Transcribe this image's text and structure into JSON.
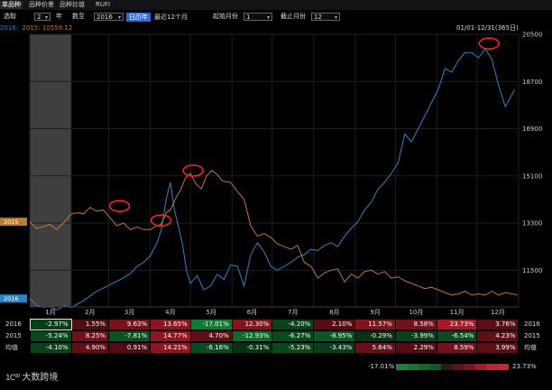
{
  "tabs": [
    {
      "label": "单品种",
      "active": true
    },
    {
      "label": "品种价差",
      "active": false
    },
    {
      "label": "品种比值",
      "active": false
    },
    {
      "label": "RUFI",
      "active": false
    }
  ],
  "toolbar": {
    "select_label": "选取",
    "count_value": "2",
    "year_label": "年",
    "to_label": "数至",
    "year_value": "2016",
    "btn_calendar": "日历年",
    "btn_last12": "最近12个月",
    "start_month_label": "起始月份",
    "start_month_value": "1",
    "end_month_label": "截止月份",
    "end_month_value": "12"
  },
  "legend": {
    "series2016": "2016:",
    "series2015": "2015: 10559.12"
  },
  "date_range": "01/01-12/31(365日)",
  "colors": {
    "s2016": "#2a87c4",
    "s2015": "#c07a2c",
    "highlight": "#ff2020",
    "green_max": "#0f8a36",
    "red_max": "#d1212f"
  },
  "chart_data": {
    "type": "line",
    "yticks": [
      11500,
      13300,
      15100,
      16900,
      18700,
      20500
    ],
    "ylim": [
      10100,
      20500
    ],
    "months": [
      "1月",
      "2月",
      "3月",
      "4月",
      "5月",
      "6月",
      "7月",
      "8月",
      "9月",
      "10月",
      "11月",
      "12月"
    ],
    "series": [
      {
        "name": "2016",
        "badge": "2016",
        "points": [
          [
            0,
            10420
          ],
          [
            5,
            10170
          ],
          [
            10,
            10080
          ],
          [
            15,
            10120
          ],
          [
            20,
            9990
          ],
          [
            26,
            10140
          ],
          [
            31,
            10080
          ],
          [
            36,
            10220
          ],
          [
            40,
            10330
          ],
          [
            45,
            10520
          ],
          [
            50,
            10700
          ],
          [
            55,
            10820
          ],
          [
            60,
            10950
          ],
          [
            65,
            11080
          ],
          [
            70,
            11210
          ],
          [
            75,
            11370
          ],
          [
            80,
            11650
          ],
          [
            85,
            11800
          ],
          [
            90,
            12050
          ],
          [
            95,
            12550
          ],
          [
            98,
            13000
          ],
          [
            102,
            14250
          ],
          [
            105,
            14850
          ],
          [
            108,
            13800
          ],
          [
            111,
            13150
          ],
          [
            114,
            12500
          ],
          [
            117,
            11500
          ],
          [
            120,
            11000
          ],
          [
            125,
            11300
          ],
          [
            130,
            10750
          ],
          [
            135,
            10900
          ],
          [
            140,
            11350
          ],
          [
            145,
            11150
          ],
          [
            150,
            11700
          ],
          [
            155,
            11650
          ],
          [
            160,
            10900
          ],
          [
            165,
            12100
          ],
          [
            170,
            12550
          ],
          [
            175,
            12200
          ],
          [
            180,
            11650
          ],
          [
            185,
            11500
          ],
          [
            190,
            11650
          ],
          [
            195,
            11800
          ],
          [
            200,
            12000
          ],
          [
            205,
            12100
          ],
          [
            210,
            12300
          ],
          [
            215,
            12250
          ],
          [
            220,
            12450
          ],
          [
            225,
            12550
          ],
          [
            230,
            12400
          ],
          [
            235,
            12800
          ],
          [
            240,
            13100
          ],
          [
            245,
            13350
          ],
          [
            250,
            13800
          ],
          [
            255,
            14100
          ],
          [
            260,
            14600
          ],
          [
            265,
            14850
          ],
          [
            270,
            15200
          ],
          [
            275,
            15600
          ],
          [
            280,
            16700
          ],
          [
            285,
            16400
          ],
          [
            290,
            16900
          ],
          [
            295,
            17400
          ],
          [
            300,
            17900
          ],
          [
            305,
            18400
          ],
          [
            310,
            19200
          ],
          [
            315,
            19050
          ],
          [
            320,
            19500
          ],
          [
            325,
            19800
          ],
          [
            330,
            19800
          ],
          [
            335,
            19600
          ],
          [
            340,
            19950
          ],
          [
            345,
            19550
          ],
          [
            350,
            18550
          ],
          [
            355,
            17750
          ],
          [
            358,
            18000
          ],
          [
            362,
            18400
          ]
        ]
      },
      {
        "name": "2015",
        "badge": "2015",
        "points": [
          [
            0,
            13350
          ],
          [
            5,
            13100
          ],
          [
            10,
            13150
          ],
          [
            15,
            13250
          ],
          [
            20,
            13050
          ],
          [
            26,
            13350
          ],
          [
            31,
            13650
          ],
          [
            36,
            13700
          ],
          [
            40,
            13650
          ],
          [
            45,
            13900
          ],
          [
            50,
            13750
          ],
          [
            55,
            13800
          ],
          [
            60,
            13500
          ],
          [
            65,
            13200
          ],
          [
            70,
            13300
          ],
          [
            75,
            13050
          ],
          [
            80,
            13150
          ],
          [
            85,
            13050
          ],
          [
            90,
            13050
          ],
          [
            95,
            13200
          ],
          [
            98,
            13250
          ],
          [
            102,
            13700
          ],
          [
            105,
            13800
          ],
          [
            110,
            14350
          ],
          [
            113,
            14600
          ],
          [
            116,
            15000
          ],
          [
            120,
            15200
          ],
          [
            124,
            14800
          ],
          [
            128,
            14600
          ],
          [
            132,
            15100
          ],
          [
            136,
            15300
          ],
          [
            140,
            15150
          ],
          [
            144,
            14900
          ],
          [
            150,
            14850
          ],
          [
            155,
            14500
          ],
          [
            160,
            14200
          ],
          [
            165,
            13200
          ],
          [
            170,
            12800
          ],
          [
            175,
            12900
          ],
          [
            180,
            12750
          ],
          [
            185,
            12500
          ],
          [
            190,
            12400
          ],
          [
            195,
            12300
          ],
          [
            200,
            12450
          ],
          [
            205,
            11800
          ],
          [
            210,
            11650
          ],
          [
            215,
            11200
          ],
          [
            220,
            11400
          ],
          [
            225,
            11500
          ],
          [
            230,
            11550
          ],
          [
            235,
            11050
          ],
          [
            240,
            11350
          ],
          [
            245,
            11200
          ],
          [
            250,
            11450
          ],
          [
            255,
            11500
          ],
          [
            260,
            11350
          ],
          [
            265,
            11450
          ],
          [
            270,
            11200
          ],
          [
            275,
            11250
          ],
          [
            280,
            11100
          ],
          [
            285,
            11000
          ],
          [
            290,
            10900
          ],
          [
            295,
            10800
          ],
          [
            300,
            10850
          ],
          [
            305,
            10750
          ],
          [
            310,
            10650
          ],
          [
            315,
            10550
          ],
          [
            320,
            10600
          ],
          [
            325,
            10700
          ],
          [
            330,
            10550
          ],
          [
            335,
            10600
          ],
          [
            340,
            10550
          ],
          [
            345,
            10700
          ],
          [
            350,
            10550
          ],
          [
            355,
            10650
          ],
          [
            360,
            10600
          ],
          [
            364,
            10560
          ]
        ]
      }
    ],
    "highlight_days": [
      {
        "day": 67,
        "value": 13950
      },
      {
        "day": 98,
        "value": 13400
      },
      {
        "day": 122,
        "value": 15300
      },
      {
        "day": 343,
        "value": 20150
      }
    ],
    "table": {
      "rows": [
        {
          "label": "2016",
          "values": [
            "-2.97%",
            "1.55%",
            "9.63%",
            "13.65%",
            "-17.01%",
            "12.30%",
            "-4.20%",
            "2.10%",
            "11.57%",
            "8.58%",
            "23.73%",
            "3.76%"
          ]
        },
        {
          "label": "2015",
          "values": [
            "-5.24%",
            "8.25%",
            "-7.81%",
            "14.77%",
            "4.70%",
            "-12.93%",
            "-6.27%",
            "-8.95%",
            "-0.29%",
            "-3.99%",
            "-6.54%",
            "4.23%"
          ]
        },
        {
          "label": "均值",
          "values": [
            "-4.10%",
            "4.90%",
            "0.91%",
            "14.21%",
            "-6.16%",
            "-0.31%",
            "-5.23%",
            "-3.43%",
            "5.64%",
            "2.29%",
            "8.59%",
            "3.99%"
          ]
        }
      ],
      "scale_min": "-17.01%",
      "scale_max": "23.73%"
    }
  },
  "logo": {
    "text": "大数跨境"
  }
}
